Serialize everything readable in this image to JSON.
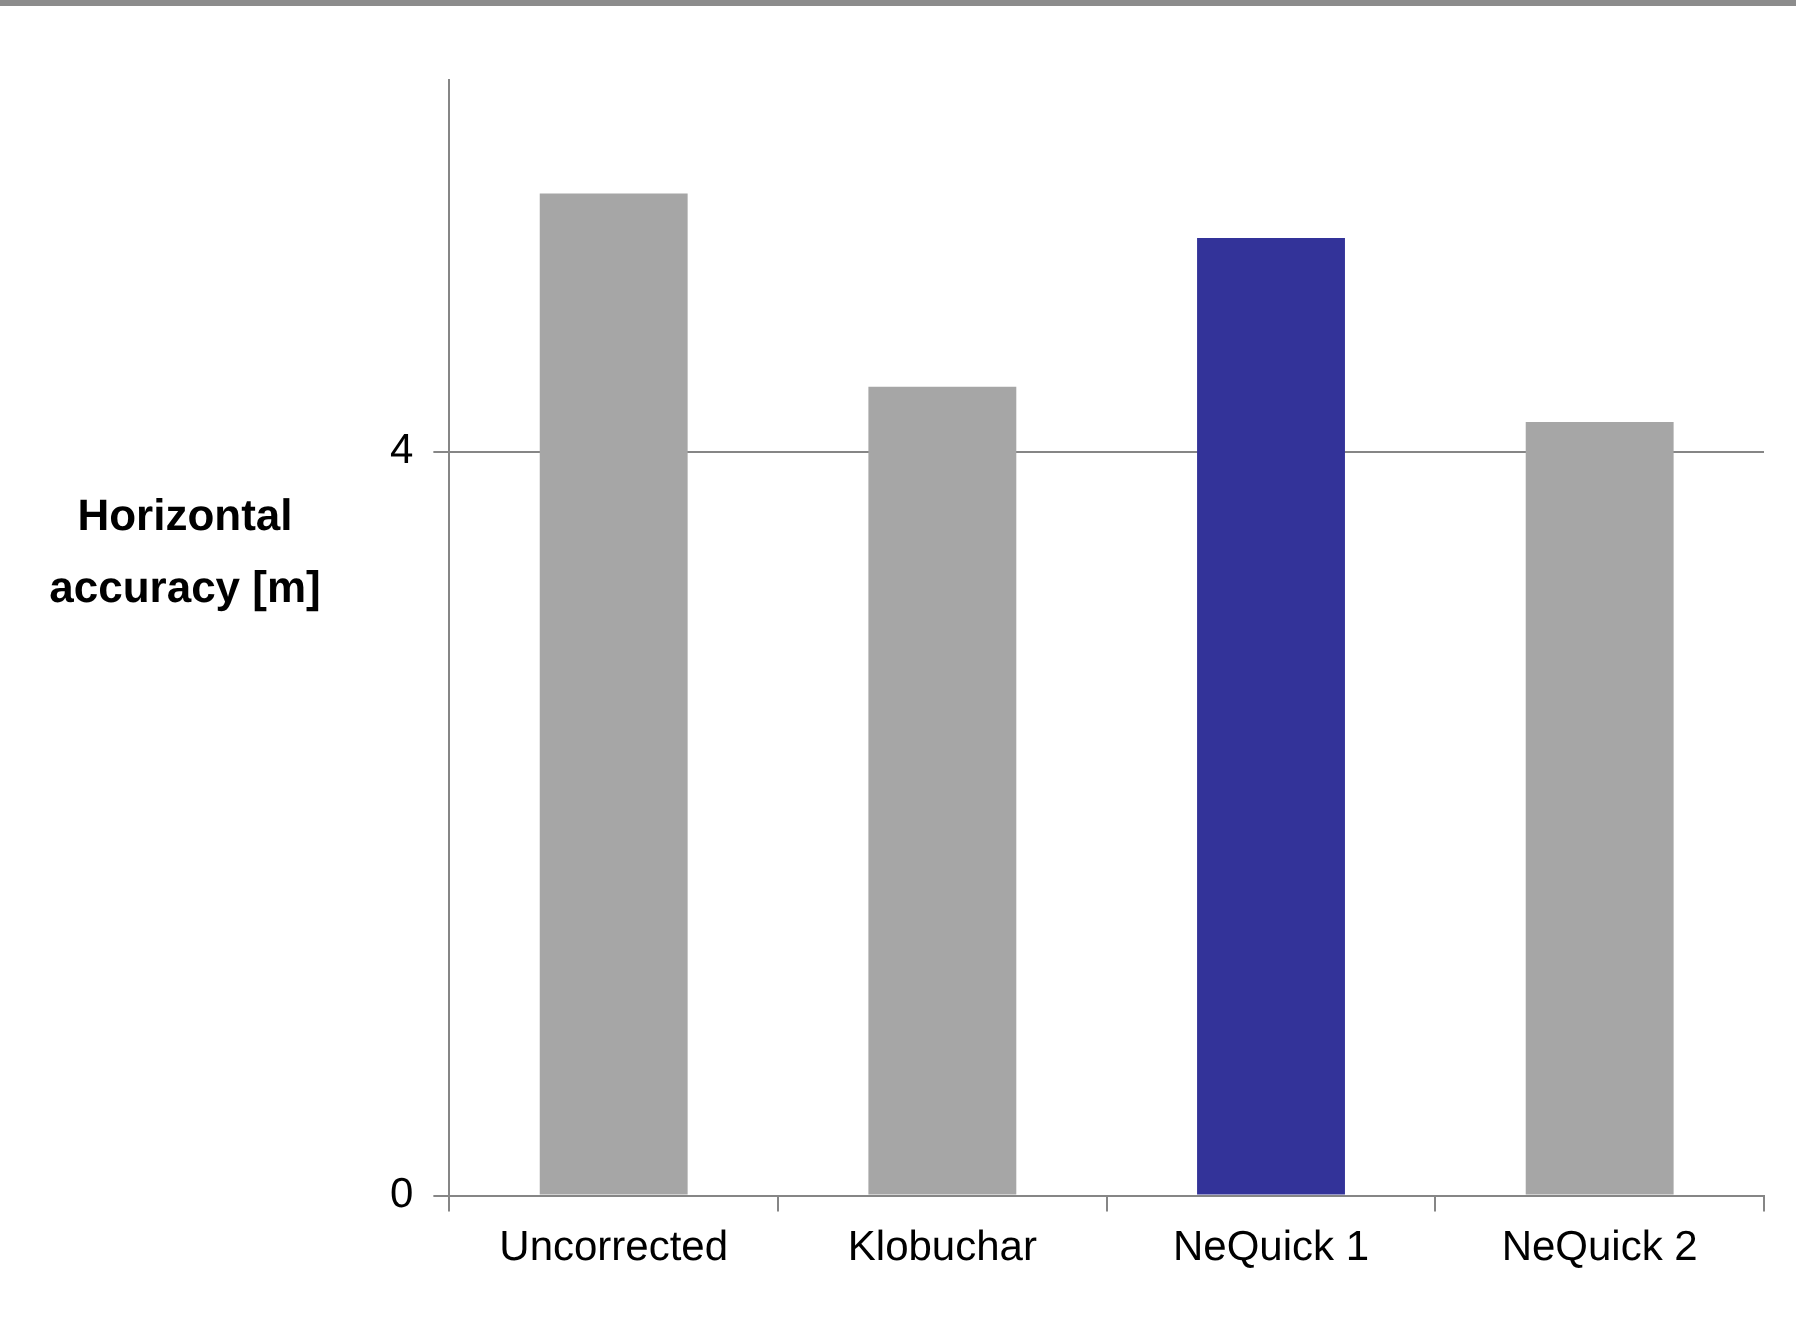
{
  "chart_data": {
    "type": "bar",
    "ylabel": "Horizontal accuracy [m]",
    "categories": [
      "Uncorrected",
      "Klobuchar",
      "NeQuick 1",
      "NeQuick 2"
    ],
    "values": [
      5.39,
      4.35,
      5.15,
      4.16
    ],
    "colors": [
      "#a6a6a6",
      "#a6a6a6",
      "#333399",
      "#a6a6a6"
    ],
    "ylim": [
      0,
      6
    ],
    "yticks": [
      0,
      4
    ],
    "grid": "y",
    "legend": false
  }
}
